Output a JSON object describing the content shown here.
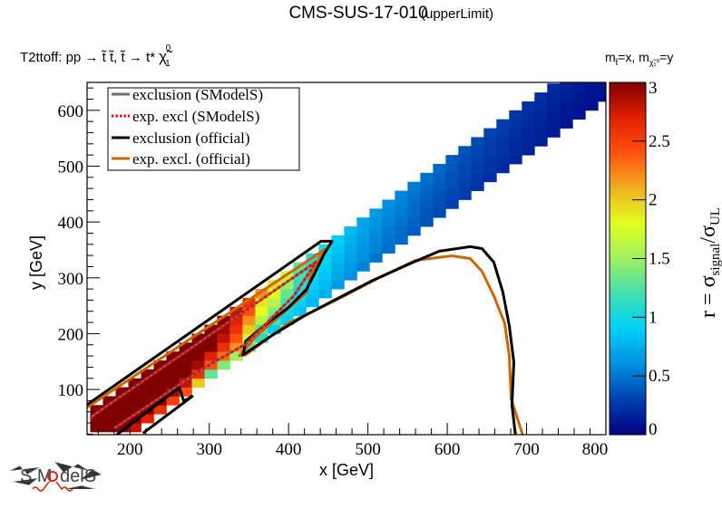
{
  "chart_data": {
    "type": "heatmap",
    "title": "CMS-SUS-17-010",
    "title_suffix": "(upperLimit)",
    "subtitle": "T2ttoff: pp → t̃ t̃, t̃ → t* χ̃ⁱ",
    "subtitle_parts": {
      "a": "T2ttoff: pp  → ",
      "b": "t̃ t̃, t̃",
      "c": "  → t*  ",
      "d": "χ̃",
      "sup": "0",
      "sub": "1"
    },
    "mass_note": {
      "m1": "m",
      "s1": "t̃",
      "eq1": "=x, m",
      "s2": "χ̃₁⁰",
      "eq2": "=y"
    },
    "xlabel": "x [GeV]",
    "ylabel": "y [GeV]",
    "zlabel": {
      "a": "r = σ",
      "sub1": "signal",
      "b": "/σ",
      "sub2": "UL"
    },
    "xlim": [
      146,
      800
    ],
    "ylim": [
      19,
      650
    ],
    "zlim": [
      0,
      3
    ],
    "x_ticks": [
      "200",
      "300",
      "400",
      "500",
      "600",
      "700",
      "800"
    ],
    "y_ticks": [
      "100",
      "200",
      "300",
      "400",
      "500",
      "600"
    ],
    "z_ticks": [
      "0",
      "0.5",
      "1",
      "1.5",
      "2",
      "2.5",
      "3"
    ],
    "grid": false,
    "legend_placement": "top-left",
    "colormap": [
      "#00007f",
      "#0040b0",
      "#0090e0",
      "#00d0f8",
      "#40e0b0",
      "#a0f060",
      "#e0ff20",
      "#f0b020",
      "#ff5010",
      "#e02000",
      "#800000"
    ],
    "legend": [
      {
        "label": "exclusion (SModelS)",
        "color": "#6e6e6e",
        "style": "solid"
      },
      {
        "label": "exp. excl (SModelS)",
        "color": "#ff0000",
        "style": "dotted"
      },
      {
        "label": "exclusion (official)",
        "color": "#000000",
        "style": "solid"
      },
      {
        "label": "exp. excl. (official)",
        "color": "#cc6600",
        "style": "solid"
      }
    ],
    "columns": [
      {
        "x": 150,
        "ymin": 24,
        "r": [
          3,
          3,
          3
        ]
      },
      {
        "x": 166,
        "ymin": 24,
        "r": [
          3,
          3,
          3,
          3
        ]
      },
      {
        "x": 182,
        "ymin": 24,
        "r": [
          3,
          3,
          3,
          3,
          3
        ]
      },
      {
        "x": 198,
        "ymin": 24,
        "r": [
          2.8,
          3,
          3,
          3,
          3,
          3
        ]
      },
      {
        "x": 214,
        "ymin": 40,
        "r": [
          2.7,
          3,
          3,
          3,
          3,
          3
        ]
      },
      {
        "x": 230,
        "ymin": 56,
        "r": [
          2.6,
          3,
          3,
          3,
          3,
          3
        ]
      },
      {
        "x": 246,
        "ymin": 72,
        "r": [
          2.5,
          2.9,
          3,
          3,
          3,
          3
        ]
      },
      {
        "x": 262,
        "ymin": 88,
        "r": [
          2.4,
          2.8,
          3,
          3,
          3,
          3
        ]
      },
      {
        "x": 278,
        "ymin": 104,
        "r": [
          2.0,
          2.6,
          2.9,
          3,
          3,
          3
        ]
      },
      {
        "x": 294,
        "ymin": 120,
        "r": [
          1.3,
          2.4,
          2.7,
          3,
          3,
          3
        ]
      },
      {
        "x": 310,
        "ymin": 136,
        "r": [
          1.4,
          2.3,
          2.6,
          2.8,
          2.9,
          3
        ]
      },
      {
        "x": 326,
        "ymin": 152,
        "r": [
          1.5,
          2.2,
          2.4,
          2.6,
          2.7,
          2.8
        ]
      },
      {
        "x": 342,
        "ymin": 168,
        "r": [
          1.3,
          1.7,
          2.0,
          2.2,
          2.4,
          2.6
        ]
      },
      {
        "x": 358,
        "ymin": 184,
        "r": [
          1.1,
          1.3,
          1.6,
          1.8,
          1.9,
          2.2
        ]
      },
      {
        "x": 374,
        "ymin": 200,
        "r": [
          0.9,
          1.2,
          1.4,
          1.6,
          1.8,
          1.9
        ]
      },
      {
        "x": 390,
        "ymin": 216,
        "r": [
          0.9,
          1.0,
          1.2,
          1.3,
          1.5,
          1.7
        ]
      },
      {
        "x": 406,
        "ymin": 232,
        "r": [
          0.85,
          0.95,
          1.0,
          1.1,
          1.2,
          1.3
        ]
      },
      {
        "x": 422,
        "ymin": 248,
        "r": [
          0.8,
          0.85,
          0.9,
          1.0,
          1.05,
          1.1
        ]
      },
      {
        "x": 438,
        "ymin": 264,
        "r": [
          0.75,
          0.8,
          0.85,
          0.9,
          0.95,
          1.0
        ]
      },
      {
        "x": 454,
        "ymin": 280,
        "r": [
          0.65,
          0.7,
          0.75,
          0.8,
          0.85,
          0.9
        ]
      },
      {
        "x": 470,
        "ymin": 296,
        "r": [
          0.6,
          0.65,
          0.7,
          0.72,
          0.75,
          0.8
        ]
      },
      {
        "x": 486,
        "ymin": 312,
        "r": [
          0.55,
          0.6,
          0.62,
          0.65,
          0.68,
          0.7
        ]
      },
      {
        "x": 502,
        "ymin": 328,
        "r": [
          0.5,
          0.55,
          0.57,
          0.6,
          0.62,
          0.65
        ]
      },
      {
        "x": 518,
        "ymin": 344,
        "r": [
          0.48,
          0.5,
          0.52,
          0.55,
          0.57,
          0.6
        ]
      },
      {
        "x": 534,
        "ymin": 360,
        "r": [
          0.45,
          0.47,
          0.5,
          0.52,
          0.54,
          0.56
        ]
      },
      {
        "x": 550,
        "ymin": 376,
        "r": [
          0.4,
          0.43,
          0.45,
          0.47,
          0.5,
          0.52
        ]
      },
      {
        "x": 566,
        "ymin": 392,
        "r": [
          0.36,
          0.38,
          0.4,
          0.42,
          0.45,
          0.48
        ]
      },
      {
        "x": 582,
        "ymin": 408,
        "r": [
          0.33,
          0.35,
          0.37,
          0.4,
          0.42,
          0.45
        ]
      },
      {
        "x": 598,
        "ymin": 424,
        "r": [
          0.3,
          0.32,
          0.34,
          0.36,
          0.38,
          0.4
        ]
      },
      {
        "x": 614,
        "ymin": 440,
        "r": [
          0.27,
          0.29,
          0.31,
          0.33,
          0.35,
          0.37
        ]
      },
      {
        "x": 630,
        "ymin": 456,
        "r": [
          0.25,
          0.26,
          0.28,
          0.3,
          0.32,
          0.34
        ]
      },
      {
        "x": 646,
        "ymin": 472,
        "r": [
          0.22,
          0.24,
          0.25,
          0.27,
          0.29,
          0.31
        ]
      },
      {
        "x": 662,
        "ymin": 488,
        "r": [
          0.2,
          0.21,
          0.23,
          0.25,
          0.27,
          0.28
        ]
      },
      {
        "x": 678,
        "ymin": 504,
        "r": [
          0.18,
          0.19,
          0.2,
          0.22,
          0.24,
          0.25
        ]
      },
      {
        "x": 694,
        "ymin": 520,
        "r": [
          0.16,
          0.17,
          0.18,
          0.2,
          0.22,
          0.23
        ]
      },
      {
        "x": 710,
        "ymin": 536,
        "r": [
          0.14,
          0.15,
          0.16,
          0.18,
          0.2,
          0.21
        ]
      },
      {
        "x": 726,
        "ymin": 552,
        "r": [
          0.12,
          0.13,
          0.14,
          0.16,
          0.18,
          0.19
        ]
      },
      {
        "x": 742,
        "ymin": 568,
        "r": [
          0.1,
          0.11,
          0.12,
          0.14,
          0.16,
          0.17
        ]
      },
      {
        "x": 758,
        "ymin": 584,
        "r": [
          0.09,
          0.1,
          0.11,
          0.13,
          0.15
        ]
      },
      {
        "x": 774,
        "ymin": 600,
        "r": [
          0.08,
          0.09,
          0.1,
          0.12
        ]
      },
      {
        "x": 790,
        "ymin": 616,
        "r": [
          0.07,
          0.08,
          0.09
        ]
      }
    ],
    "contours": [
      {
        "legend": 2,
        "points": [
          [
            145.5,
            72.3
          ],
          [
            441,
            365.5
          ],
          [
            454.7,
            365.5
          ],
          [
            445.5,
            344.3
          ],
          [
            434.1,
            311.7
          ],
          [
            422.7,
            279.2
          ],
          [
            399.7,
            246.6
          ],
          [
            368.8,
            214
          ],
          [
            345.9,
            186.3
          ],
          [
            342.5,
            161.9
          ],
          [
            380.3,
            197.7
          ],
          [
            418.1,
            230.3
          ],
          [
            457,
            259.6
          ],
          [
            506.2,
            295.4
          ],
          [
            552.1,
            324.8
          ],
          [
            589.9,
            347.6
          ],
          [
            628.9,
            355.7
          ],
          [
            643.8,
            352.4
          ],
          [
            658.7,
            328
          ],
          [
            670.1,
            274.3
          ],
          [
            678.2,
            214
          ],
          [
            683.9,
            148.9
          ],
          [
            681.6,
            72.3
          ],
          [
            686.2,
            15.3
          ]
        ]
      },
      {
        "legend": 2,
        "points": [
          [
            183.3,
            18.6
          ],
          [
            262.3,
            103.3
          ],
          [
            268,
            78.8
          ],
          [
            279.5,
            88.6
          ]
        ]
      },
      {
        "legend": 2,
        "points": [
          [
            216.5,
            21.8
          ],
          [
            279.5,
            88.6
          ]
        ]
      },
      {
        "legend": 3,
        "points": [
          [
            145.5,
            67.4
          ],
          [
            445.5,
            350.8
          ],
          [
            437.5,
            332.9
          ],
          [
            428.4,
            306.8
          ],
          [
            422.7,
            274.3
          ],
          [
            391.7,
            235.2
          ],
          [
            360.8,
            197.7
          ],
          [
            338,
            160.3
          ],
          [
            345.9,
            161.9
          ],
          [
            399.7,
            218.9
          ],
          [
            457,
            258
          ],
          [
            514.2,
            300.3
          ],
          [
            560.1,
            331.3
          ],
          [
            606,
            339.4
          ],
          [
            628.9,
            334.5
          ],
          [
            643.8,
            311.7
          ],
          [
            658.7,
            267.8
          ],
          [
            672.4,
            218.9
          ],
          [
            678.2,
            160.3
          ],
          [
            680.5,
            83.7
          ],
          [
            695.4,
            16.9
          ]
        ]
      },
      {
        "legend": 0,
        "points": [
          [
            150,
            48
          ],
          [
            154.6,
            54.4
          ],
          [
            434.1,
            328
          ],
          [
            429.5,
            316.6
          ],
          [
            406.6,
            267.8
          ],
          [
            345.9,
            181.4
          ],
          [
            292.1,
            137.5
          ],
          [
            179.8,
            30
          ]
        ]
      },
      {
        "legend": 1,
        "points": [
          [
            150,
            48
          ],
          [
            154.6,
            54.4
          ],
          [
            434.1,
            328
          ],
          [
            429.5,
            316.6
          ],
          [
            406.6,
            267.8
          ],
          [
            345.9,
            181.4
          ],
          [
            292.1,
            137.5
          ],
          [
            179.8,
            30
          ]
        ]
      }
    ]
  },
  "logo": {
    "text": "SModelS"
  }
}
